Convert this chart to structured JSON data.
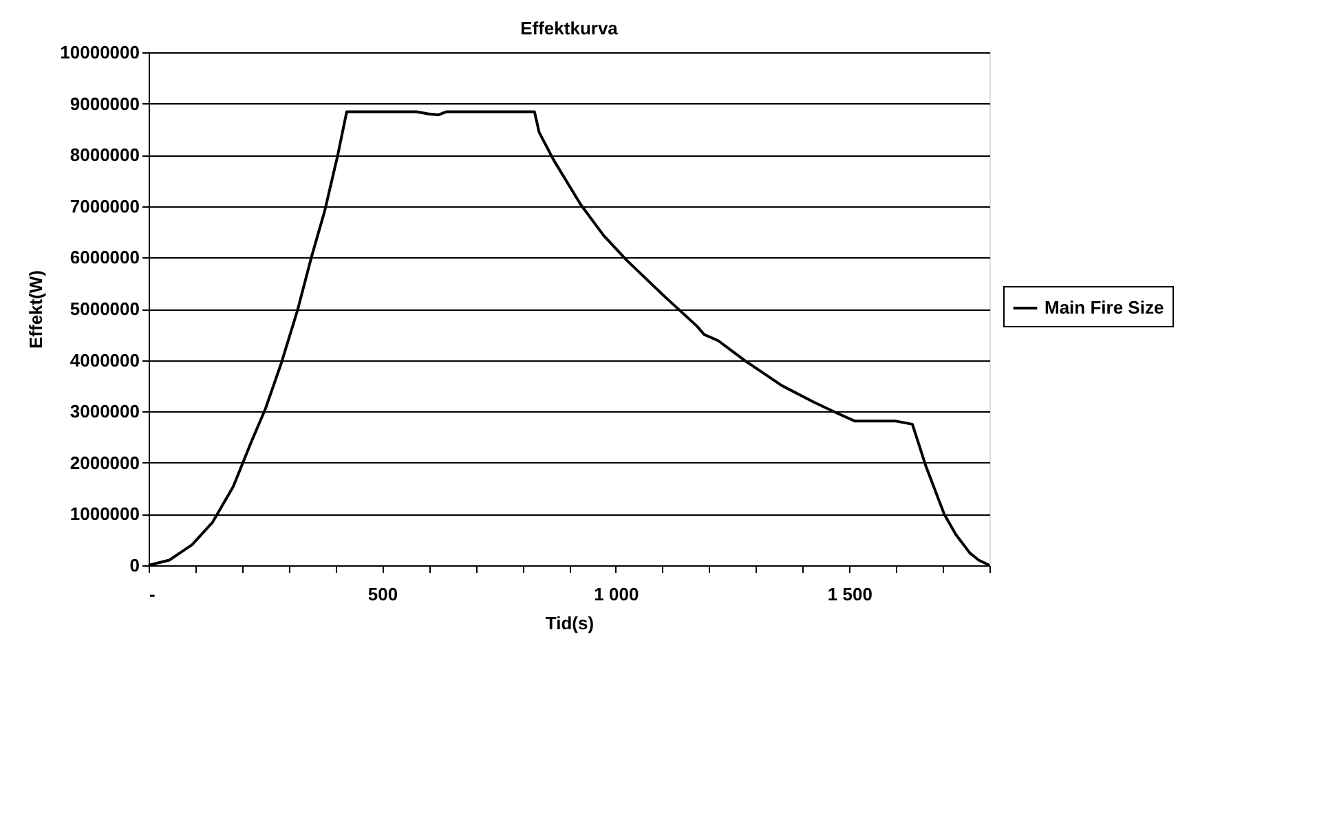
{
  "chart_data": {
    "type": "line",
    "title": "Effektkurva",
    "xlabel": "Tid(s)",
    "ylabel": "Effekt(W)",
    "x": [
      0,
      44,
      93,
      137,
      181,
      220,
      250,
      284,
      319,
      348,
      377,
      405,
      424,
      573,
      598,
      620,
      637,
      826,
      836,
      867,
      925,
      974,
      1023,
      1101,
      1174,
      1189,
      1219,
      1278,
      1356,
      1424,
      1473,
      1512,
      1600,
      1635,
      1664,
      1703,
      1728,
      1758,
      1777,
      1800
    ],
    "series": [
      {
        "name": "Main Fire Size",
        "color": "#000000",
        "values": [
          0,
          100000,
          400000,
          840000,
          1530000,
          2410000,
          3050000,
          3940000,
          4980000,
          5990000,
          6910000,
          8000000,
          8840000,
          8840000,
          8800000,
          8780000,
          8840000,
          8840000,
          8440000,
          7900000,
          7030000,
          6430000,
          5950000,
          5270000,
          4660000,
          4500000,
          4380000,
          3980000,
          3500000,
          3180000,
          2970000,
          2810000,
          2810000,
          2750000,
          1930000,
          1000000,
          600000,
          240000,
          100000,
          0
        ]
      }
    ],
    "xlim": [
      0,
      1800
    ],
    "xticks": [
      {
        "value": 0,
        "label": "-"
      },
      {
        "value": 100,
        "label": null
      },
      {
        "value": 200,
        "label": null
      },
      {
        "value": 300,
        "label": null
      },
      {
        "value": 400,
        "label": null
      },
      {
        "value": 500,
        "label": "500"
      },
      {
        "value": 600,
        "label": null
      },
      {
        "value": 700,
        "label": null
      },
      {
        "value": 800,
        "label": null
      },
      {
        "value": 900,
        "label": null
      },
      {
        "value": 1000,
        "label": "1 000"
      },
      {
        "value": 1100,
        "label": null
      },
      {
        "value": 1200,
        "label": null
      },
      {
        "value": 1300,
        "label": null
      },
      {
        "value": 1400,
        "label": null
      },
      {
        "value": 1500,
        "label": "1 500"
      },
      {
        "value": 1600,
        "label": null
      },
      {
        "value": 1700,
        "label": null
      },
      {
        "value": 1800,
        "label": null
      }
    ],
    "ylim": [
      0,
      10000000
    ],
    "yticks": [
      0,
      1000000,
      2000000,
      3000000,
      4000000,
      5000000,
      6000000,
      7000000,
      8000000,
      9000000,
      10000000
    ],
    "grid": "y",
    "legend": "right",
    "marker": "none",
    "line_style": "solid"
  }
}
